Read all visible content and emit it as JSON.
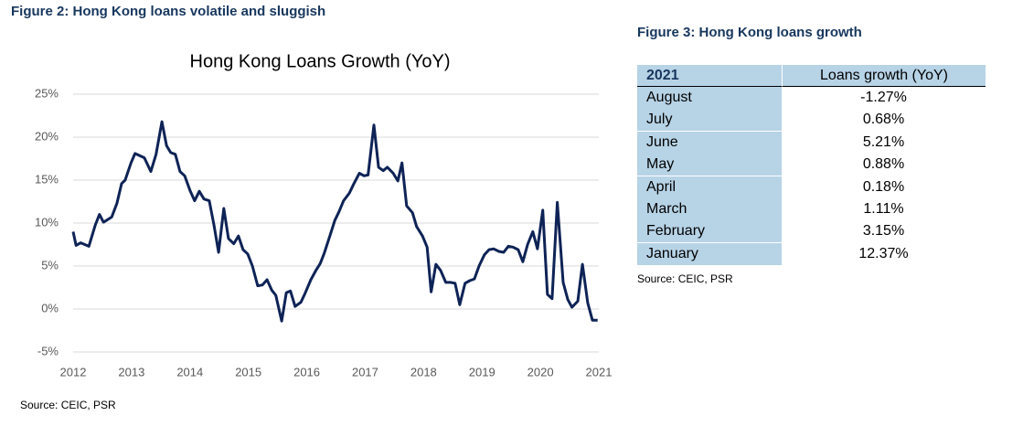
{
  "figure2_title": "Figure 2: Hong Kong loans volatile and sluggish",
  "figure2_source": "Source: CEIC, PSR",
  "chart_data": {
    "type": "line",
    "title": "Hong Kong Loans Growth (YoY)",
    "color": "#0e2356",
    "grid": true,
    "xlim": [
      2012,
      2021
    ],
    "xticks": [
      2012,
      2013,
      2014,
      2015,
      2016,
      2017,
      2018,
      2019,
      2020,
      2021
    ],
    "ylim": [
      -5,
      25
    ],
    "yticks": [
      {
        "value": -5,
        "label": "-5%"
      },
      {
        "value": 0,
        "label": "0%"
      },
      {
        "value": 5,
        "label": "5%"
      },
      {
        "value": 10,
        "label": "10%"
      },
      {
        "value": 15,
        "label": "15%"
      },
      {
        "value": 20,
        "label": "20%"
      },
      {
        "value": 25,
        "label": "25%"
      }
    ],
    "x": [
      2012.0,
      2012.05,
      2012.13,
      2012.27,
      2012.38,
      2012.45,
      2012.52,
      2012.66,
      2012.75,
      2012.83,
      2012.89,
      2012.99,
      2013.06,
      2013.22,
      2013.33,
      2013.42,
      2013.52,
      2013.6,
      2013.67,
      2013.75,
      2013.83,
      2013.91,
      2014.0,
      2014.08,
      2014.16,
      2014.24,
      2014.33,
      2014.41,
      2014.49,
      2014.58,
      2014.66,
      2014.75,
      2014.83,
      2014.91,
      2014.99,
      2015.07,
      2015.16,
      2015.24,
      2015.32,
      2015.4,
      2015.47,
      2015.57,
      2015.65,
      2015.72,
      2015.8,
      2015.9,
      2015.97,
      2016.07,
      2016.15,
      2016.23,
      2016.3,
      2016.4,
      2016.48,
      2016.55,
      2016.63,
      2016.73,
      2016.8,
      2016.9,
      2016.98,
      2017.05,
      2017.15,
      2017.23,
      2017.31,
      2017.38,
      2017.48,
      2017.56,
      2017.63,
      2017.71,
      2017.81,
      2017.88,
      2017.98,
      2018.06,
      2018.13,
      2018.21,
      2018.29,
      2018.38,
      2018.46,
      2018.54,
      2018.62,
      2018.71,
      2018.79,
      2018.87,
      2018.95,
      2019.04,
      2019.12,
      2019.2,
      2019.29,
      2019.37,
      2019.45,
      2019.53,
      2019.62,
      2019.7,
      2019.78,
      2019.87,
      2019.95,
      2020.04,
      2020.12,
      2020.2,
      2020.29,
      2020.39,
      2020.47,
      2020.54,
      2020.64,
      2020.72,
      2020.81,
      2020.89,
      2020.98
    ],
    "values": [
      9.0,
      7.4,
      7.7,
      7.3,
      9.8,
      11.0,
      10.1,
      10.7,
      12.3,
      14.6,
      15.0,
      17.0,
      18.1,
      17.6,
      16.0,
      18.0,
      21.8,
      19.0,
      18.2,
      18.0,
      16.0,
      15.5,
      13.8,
      12.6,
      13.7,
      12.8,
      12.6,
      9.8,
      6.6,
      11.7,
      8.2,
      7.6,
      8.5,
      6.9,
      6.4,
      5.0,
      2.7,
      2.8,
      3.4,
      2.2,
      1.6,
      -1.4,
      1.9,
      2.1,
      0.3,
      0.8,
      1.8,
      3.4,
      4.4,
      5.3,
      6.5,
      8.6,
      10.3,
      11.3,
      12.6,
      13.5,
      14.5,
      15.8,
      15.5,
      15.6,
      21.4,
      16.5,
      16.1,
      16.5,
      15.8,
      14.9,
      17.0,
      12.0,
      11.2,
      9.6,
      8.5,
      7.2,
      2.0,
      5.2,
      4.5,
      3.1,
      3.1,
      3.0,
      0.5,
      3.0,
      3.3,
      3.5,
      5.0,
      6.3,
      6.9,
      7.0,
      6.7,
      6.6,
      7.3,
      7.2,
      6.9,
      5.5,
      7.5,
      9.0,
      7.0,
      11.5,
      1.7,
      1.2,
      12.4,
      3.1,
      1.1,
      0.2,
      0.9,
      5.2,
      0.7,
      -1.3,
      -1.3
    ]
  },
  "figure3_title": "Figure 3: Hong Kong loans growth",
  "figure3_source": "Source: CEIC, PSR",
  "table": {
    "header": [
      "2021",
      "Loans growth (YoY)"
    ],
    "rows": [
      [
        "August",
        "-1.27%"
      ],
      [
        "July",
        "0.68%"
      ],
      [
        "June",
        "5.21%"
      ],
      [
        "May",
        "0.88%"
      ],
      [
        "April",
        "0.18%"
      ],
      [
        "March",
        "1.11%"
      ],
      [
        "February",
        "3.15%"
      ],
      [
        "January",
        "12.37%"
      ]
    ]
  }
}
